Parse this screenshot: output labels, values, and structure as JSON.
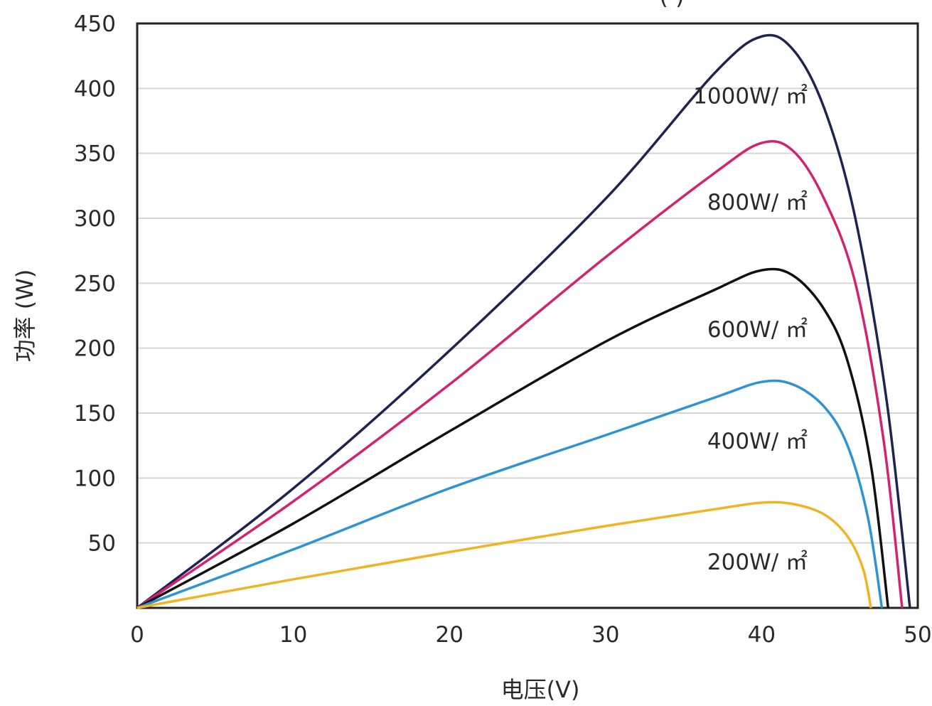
{
  "chart_data": {
    "type": "line",
    "title_fragment": "(        )",
    "xlabel": "电压(V)",
    "ylabel": "功率 (W)",
    "xlim": [
      0,
      50
    ],
    "ylim": [
      0,
      450
    ],
    "x_ticks": [
      "0",
      "10",
      "20",
      "30",
      "40",
      "50"
    ],
    "y_ticks": [
      "50",
      "100",
      "150",
      "200",
      "250",
      "300",
      "350",
      "400",
      "450"
    ],
    "grid": "horizontal",
    "series": [
      {
        "name": "1000W/ ㎡",
        "color": "#1f2352",
        "points": [
          [
            0,
            0
          ],
          [
            10,
            92
          ],
          [
            20,
            198
          ],
          [
            30,
            315
          ],
          [
            37,
            412
          ],
          [
            40,
            440
          ],
          [
            42,
            430
          ],
          [
            44,
            385
          ],
          [
            46,
            300
          ],
          [
            48,
            160
          ],
          [
            49.5,
            0
          ]
        ]
      },
      {
        "name": "800W/ ㎡",
        "color": "#d1236f",
        "points": [
          [
            0,
            0
          ],
          [
            10,
            82
          ],
          [
            20,
            172
          ],
          [
            30,
            270
          ],
          [
            37,
            335
          ],
          [
            40,
            358
          ],
          [
            42,
            352
          ],
          [
            44,
            315
          ],
          [
            46,
            250
          ],
          [
            47.8,
            130
          ],
          [
            49,
            0
          ]
        ]
      },
      {
        "name": "600W/ ㎡",
        "color": "#111111",
        "points": [
          [
            0,
            0
          ],
          [
            10,
            65
          ],
          [
            20,
            136
          ],
          [
            30,
            205
          ],
          [
            37,
            245
          ],
          [
            40,
            260
          ],
          [
            42,
            256
          ],
          [
            44,
            230
          ],
          [
            45.5,
            190
          ],
          [
            47,
            110
          ],
          [
            48.1,
            0
          ]
        ]
      },
      {
        "name": "400W/ ㎡",
        "color": "#2d93d3",
        "points": [
          [
            0,
            0
          ],
          [
            10,
            45
          ],
          [
            20,
            92
          ],
          [
            30,
            133
          ],
          [
            37,
            162
          ],
          [
            40,
            174
          ],
          [
            42,
            172
          ],
          [
            44,
            155
          ],
          [
            45.5,
            125
          ],
          [
            46.8,
            70
          ],
          [
            47.7,
            0
          ]
        ]
      },
      {
        "name": "200W/ ㎡",
        "color": "#f0b323",
        "points": [
          [
            0,
            0
          ],
          [
            10,
            22
          ],
          [
            20,
            43
          ],
          [
            30,
            63
          ],
          [
            37,
            76
          ],
          [
            40,
            81
          ],
          [
            42,
            80
          ],
          [
            44,
            72
          ],
          [
            45.5,
            55
          ],
          [
            46.5,
            30
          ],
          [
            47,
            0
          ]
        ]
      }
    ]
  }
}
